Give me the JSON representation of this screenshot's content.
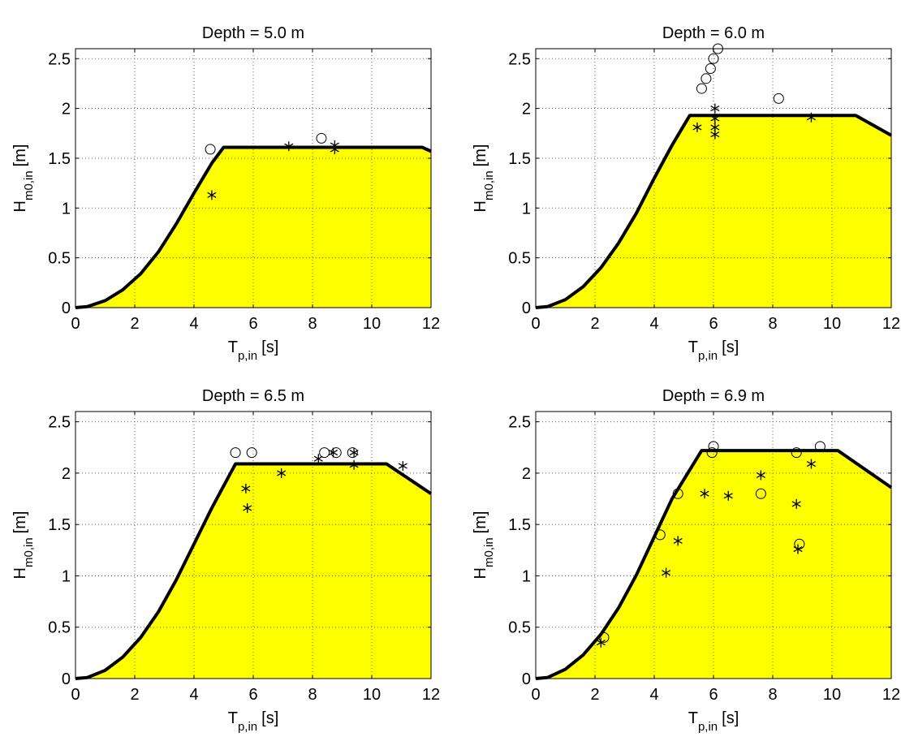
{
  "chart_data": [
    {
      "type": "area",
      "title": "Depth = 5.0 m",
      "xlabel_main": "T",
      "xlabel_sub": "p,in",
      "xlabel_unit": "[s]",
      "ylabel_main": "H",
      "ylabel_sub": "m0,in",
      "ylabel_unit": "[m]",
      "xlim": [
        0,
        12
      ],
      "ylim": [
        0,
        2.6
      ],
      "xticks": [
        0,
        2,
        4,
        6,
        8,
        10,
        12
      ],
      "yticks": [
        0,
        0.5,
        1,
        1.5,
        2,
        2.5
      ],
      "ytick_labels": [
        "0",
        "0.5",
        "1",
        "1.5",
        "2",
        "2.5"
      ],
      "grid": true,
      "fill_color": "#ffff00",
      "boundary": {
        "x": [
          0,
          0.4,
          1,
          1.6,
          2.2,
          2.8,
          3.4,
          4.0,
          4.6,
          5.0,
          11.7,
          12.0
        ],
        "y": [
          0,
          0.01,
          0.07,
          0.18,
          0.34,
          0.56,
          0.84,
          1.15,
          1.45,
          1.61,
          1.61,
          1.57
        ]
      },
      "series": [
        {
          "marker": "circle",
          "x": [
            4.55,
            8.3
          ],
          "y": [
            1.59,
            1.7
          ]
        },
        {
          "marker": "star",
          "x": [
            4.6,
            7.2,
            8.75,
            8.75
          ],
          "y": [
            1.13,
            1.62,
            1.63,
            1.59
          ]
        }
      ]
    },
    {
      "type": "area",
      "title": "Depth = 6.0 m",
      "xlabel_main": "T",
      "xlabel_sub": "p,in",
      "xlabel_unit": "[s]",
      "ylabel_main": "H",
      "ylabel_sub": "m0,in",
      "ylabel_unit": "[m]",
      "xlim": [
        0,
        12
      ],
      "ylim": [
        0,
        2.6
      ],
      "xticks": [
        0,
        2,
        4,
        6,
        8,
        10,
        12
      ],
      "yticks": [
        0,
        0.5,
        1,
        1.5,
        2,
        2.5
      ],
      "ytick_labels": [
        "0",
        "0.5",
        "1",
        "1.5",
        "2",
        "2.5"
      ],
      "grid": true,
      "fill_color": "#ffff00",
      "boundary": {
        "x": [
          0,
          0.4,
          1,
          1.6,
          2.2,
          2.8,
          3.4,
          4.0,
          4.6,
          5.2,
          10.8,
          12.0
        ],
        "y": [
          0,
          0.01,
          0.08,
          0.21,
          0.4,
          0.65,
          0.95,
          1.3,
          1.63,
          1.93,
          1.93,
          1.73
        ]
      },
      "series": [
        {
          "marker": "circle",
          "x": [
            5.6,
            5.75,
            5.9,
            6.0,
            6.15,
            8.2
          ],
          "y": [
            2.2,
            2.3,
            2.4,
            2.5,
            2.6,
            2.1
          ]
        },
        {
          "marker": "star",
          "x": [
            5.45,
            6.05,
            6.05,
            6.05,
            6.05,
            9.3
          ],
          "y": [
            1.81,
            2.0,
            1.9,
            1.81,
            1.74,
            1.91
          ]
        }
      ]
    },
    {
      "type": "area",
      "title": "Depth = 6.5 m",
      "xlabel_main": "T",
      "xlabel_sub": "p,in",
      "xlabel_unit": "[s]",
      "ylabel_main": "H",
      "ylabel_sub": "m0,in",
      "ylabel_unit": "[m]",
      "xlim": [
        0,
        12
      ],
      "ylim": [
        0,
        2.6
      ],
      "xticks": [
        0,
        2,
        4,
        6,
        8,
        10,
        12
      ],
      "yticks": [
        0,
        0.5,
        1,
        1.5,
        2,
        2.5
      ],
      "ytick_labels": [
        "0",
        "0.5",
        "1",
        "1.5",
        "2",
        "2.5"
      ],
      "grid": true,
      "fill_color": "#ffff00",
      "boundary": {
        "x": [
          0,
          0.4,
          1,
          1.6,
          2.2,
          2.8,
          3.4,
          4.0,
          4.6,
          5.4,
          10.5,
          12.0
        ],
        "y": [
          0,
          0.01,
          0.08,
          0.21,
          0.4,
          0.65,
          0.96,
          1.31,
          1.66,
          2.09,
          2.09,
          1.8
        ]
      },
      "series": [
        {
          "marker": "circle",
          "x": [
            5.4,
            5.95,
            8.4,
            8.8,
            9.35
          ],
          "y": [
            2.2,
            2.2,
            2.2,
            2.2,
            2.2
          ]
        },
        {
          "marker": "star",
          "x": [
            5.75,
            5.8,
            6.95,
            8.2,
            8.7,
            9.4,
            9.4,
            11.05
          ],
          "y": [
            1.85,
            1.66,
            2.0,
            2.14,
            2.2,
            2.2,
            2.08,
            2.07
          ]
        }
      ]
    },
    {
      "type": "area",
      "title": "Depth = 6.9 m",
      "xlabel_main": "T",
      "xlabel_sub": "p,in",
      "xlabel_unit": "[s]",
      "ylabel_main": "H",
      "ylabel_sub": "m0,in",
      "ylabel_unit": "[m]",
      "xlim": [
        0,
        12
      ],
      "ylim": [
        0,
        2.6
      ],
      "xticks": [
        0,
        2,
        4,
        6,
        8,
        10,
        12
      ],
      "yticks": [
        0,
        0.5,
        1,
        1.5,
        2,
        2.5
      ],
      "ytick_labels": [
        "0",
        "0.5",
        "1",
        "1.5",
        "2",
        "2.5"
      ],
      "grid": true,
      "fill_color": "#ffff00",
      "boundary": {
        "x": [
          0,
          0.4,
          1,
          1.6,
          2.2,
          2.8,
          3.4,
          4.0,
          4.6,
          5.6,
          10.2,
          12.0
        ],
        "y": [
          0,
          0.01,
          0.09,
          0.23,
          0.43,
          0.69,
          1.01,
          1.38,
          1.75,
          2.22,
          2.22,
          1.86
        ]
      },
      "series": [
        {
          "marker": "circle",
          "x": [
            2.3,
            4.2,
            4.8,
            5.95,
            6.0,
            7.6,
            8.8,
            8.9,
            9.6
          ],
          "y": [
            0.4,
            1.4,
            1.8,
            2.2,
            2.26,
            1.8,
            2.2,
            1.31,
            2.26
          ]
        },
        {
          "marker": "star",
          "x": [
            2.2,
            4.4,
            4.8,
            5.7,
            6.5,
            7.6,
            8.8,
            8.85,
            9.3
          ],
          "y": [
            0.35,
            1.03,
            1.34,
            1.8,
            1.78,
            1.98,
            1.7,
            1.26,
            2.09
          ]
        }
      ]
    }
  ]
}
